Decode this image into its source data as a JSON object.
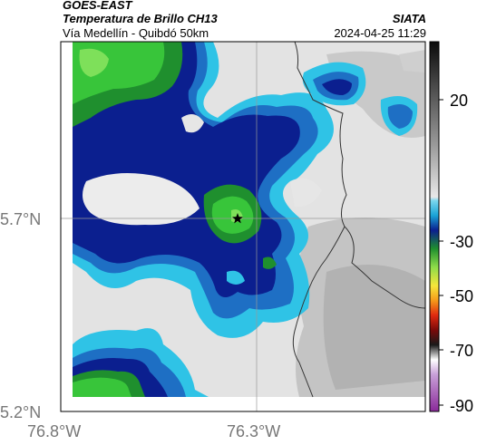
{
  "header": {
    "satellite": "GOES-EAST",
    "product": "Temperatura de Brillo CH13",
    "route": "Vía Medellín - Quibdó 50km",
    "org": "SIATA",
    "datetime": "2024-04-25 11:29"
  },
  "map": {
    "x_ticks": [
      "76.8°W",
      "76.3°W"
    ],
    "y_ticks": [
      "5.7°N",
      "5.2°N"
    ],
    "marker": "star"
  },
  "colorbar": {
    "labels": [
      "20",
      "-30",
      "-50",
      "-70",
      "-90"
    ]
  },
  "colors": {
    "grey_light": "#e6e6e6",
    "grey_mid": "#bdbdbd",
    "cyan": "#2fc3e6",
    "blue": "#1e6fc4",
    "navy": "#0b1f8f",
    "green_dark": "#1f8f2e",
    "green": "#38c53a",
    "green_light": "#7ee05a"
  }
}
